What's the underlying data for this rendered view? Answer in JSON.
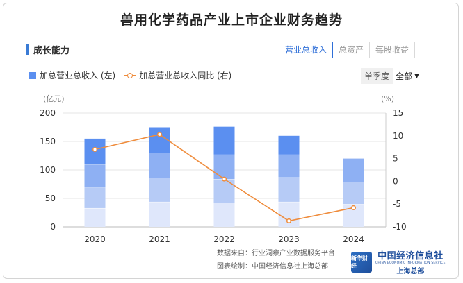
{
  "title": "兽用化学药品产业上市企业财务趋势",
  "section": "成长能力",
  "tabs": [
    "营业总收入",
    "总资产",
    "每股收益"
  ],
  "active_tab": 0,
  "legend": {
    "bar": "加总营业总收入 (左)",
    "line": "加总营业总收入同比 (右)"
  },
  "season": {
    "label": "单季度",
    "value": "全部"
  },
  "footer": {
    "source": "数据来自：行业洞察产业数据服务平台",
    "maker": "图表绘制：中国经济信息社上海总部"
  },
  "logo": {
    "mark": "新华财经",
    "name": "中国经济信息社",
    "english": "CHINA ECONOMIC INFORMATION SERVICE",
    "sub": "上海总部"
  },
  "colors": {
    "seg1": "#dfe7fb",
    "seg2": "#b6cbf6",
    "seg3": "#8eb0f3",
    "seg4": "#5b8ff0",
    "line": "#ef8c3c",
    "grid": "#e6e6e6",
    "axis_text": "#333333"
  },
  "chart_data": {
    "type": "bar",
    "categories": [
      "2020",
      "2021",
      "2022",
      "2023",
      "2024"
    ],
    "stack_cumulative": [
      [
        33,
        70,
        110,
        155
      ],
      [
        44,
        86,
        130,
        175
      ],
      [
        42,
        84,
        127,
        176
      ],
      [
        44,
        87,
        127,
        160
      ],
      [
        40,
        79,
        120
      ]
    ],
    "series": [
      {
        "name": "加总营业总收入 (左)",
        "values": [
          155,
          175,
          176,
          160,
          120
        ],
        "axis": "left"
      },
      {
        "name": "加总营业总收入同比 (右)",
        "type": "line",
        "values": [
          7.0,
          10.3,
          0.5,
          -8.7,
          -5.8
        ],
        "axis": "right"
      }
    ],
    "y_left": {
      "unit": "(亿元)",
      "lim": [
        0,
        200
      ],
      "ticks": [
        0,
        50,
        100,
        150,
        200
      ]
    },
    "y_right": {
      "unit": "(%)",
      "lim": [
        -10,
        15
      ],
      "ticks": [
        -10,
        -5,
        0,
        5,
        10,
        15
      ]
    },
    "grid": true,
    "legend_position": "top-left"
  }
}
